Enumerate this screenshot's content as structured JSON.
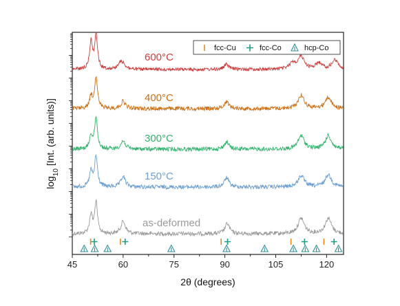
{
  "chart_data": {
    "type": "line",
    "xlabel": "2θ (degrees)",
    "ylabel_parts": {
      "prefix": "log",
      "sub": "10",
      "suffix": " [Int. (arb. units)]"
    },
    "xlim": [
      45,
      125
    ],
    "x_ticks": [
      45,
      60,
      75,
      90,
      105,
      120
    ],
    "y_scale": "log",
    "y_tick_labels_shown": false,
    "legend_position": "top-right",
    "legend": [
      {
        "name": "fcc-Cu",
        "marker": "bar",
        "color": "#e08a1e"
      },
      {
        "name": "fcc-Co",
        "marker": "plus",
        "color": "#1a9e86"
      },
      {
        "name": "hcp-Co",
        "marker": "hollow-triangle",
        "color": "#2f8f9a"
      }
    ],
    "series": [
      {
        "name": "as-deformed",
        "color": "#9a9a9a",
        "peaks": [
          [
            50.5,
            1.8
          ],
          [
            52.0,
            3.0
          ],
          [
            60.0,
            1.2
          ],
          [
            90.7,
            1.0
          ],
          [
            112.5,
            1.5
          ],
          [
            120.5,
            1.5
          ]
        ]
      },
      {
        "name": "150°C",
        "color": "#6c9fd2",
        "peaks": [
          [
            50.5,
            1.5
          ],
          [
            52.0,
            3.0
          ],
          [
            60.0,
            1.0
          ],
          [
            90.5,
            0.9
          ],
          [
            112.5,
            1.1
          ],
          [
            120.5,
            1.2
          ]
        ]
      },
      {
        "name": "300°C",
        "color": "#2fb36a",
        "peaks": [
          [
            50.5,
            1.3
          ],
          [
            52.0,
            3.1
          ],
          [
            60.0,
            0.8
          ],
          [
            90.5,
            0.7
          ],
          [
            112.5,
            1.3
          ],
          [
            120.5,
            1.3
          ]
        ]
      },
      {
        "name": "400°C",
        "color": "#cf6f10",
        "peaks": [
          [
            50.5,
            1.2
          ],
          [
            52.0,
            3.1
          ],
          [
            60.0,
            0.7
          ],
          [
            90.5,
            0.7
          ],
          [
            112.5,
            1.3
          ],
          [
            120.5,
            1.1
          ]
        ]
      },
      {
        "name": "600°C",
        "color": "#d03a3a",
        "peaks": [
          [
            50.5,
            2.6
          ],
          [
            52.0,
            3.4
          ],
          [
            59.0,
            0.5
          ],
          [
            60.0,
            0.5
          ],
          [
            90.5,
            0.5
          ],
          [
            110.0,
            0.6
          ],
          [
            112.5,
            1.2
          ],
          [
            117.7,
            0.6
          ],
          [
            122.5,
            0.9
          ]
        ]
      }
    ],
    "reference_positions": {
      "fcc-Cu": [
        50.4,
        59.2,
        88.9,
        109.5,
        119.2
      ],
      "fcc-Co": [
        51.5,
        60.6,
        90.8,
        113.5,
        122.2
      ],
      "hcp-Co": [
        48.5,
        51.6,
        55.4,
        74.2,
        90.5,
        101.7,
        110.2,
        113.7,
        117.0,
        123.5
      ]
    }
  }
}
